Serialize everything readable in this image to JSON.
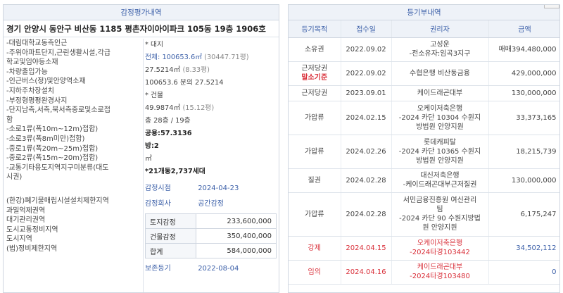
{
  "left_panel": {
    "title": "감정평가내역",
    "address": "경기 안양시 동안구 비산동 1185 평촌자이아이파크 105동 19층 1906호",
    "features": [
      "-대림대학교동측인근",
      "-주위아파트단지,근린생활시설,각급",
      "학교및임야등소재",
      "-차량출입가능",
      "-인근버스(정)및안양역소재",
      "-지하주차장설치",
      "-부정형평평완경사지",
      "-단지남측,서측,북서측중로및소로접",
      "함",
      "-소로1류(폭10m~12m)접합)",
      "-소로3류(폭8m미만)접합)",
      "-중로1류(폭20m~25m)접합)",
      "-중로2류(폭15m~20m)접합)",
      "-교통기타용도지역지구미분류(대도",
      "시권)"
    ],
    "zoning": [
      "(한강)폐기물매립시설설치제한지역",
      "과밀억제권역",
      "대기관리권역",
      "도시교통정비지역",
      "도시지역",
      "(법)정비제한지역"
    ],
    "land": {
      "header": "* 대지",
      "total_label": "전체: ",
      "total_value": "100653.6㎡",
      "total_pyeong": "(30447.71평)",
      "share_value": "27.5214㎡",
      "share_pyeong": "(8.33평)",
      "fraction": "100653.6 분의 27.5214"
    },
    "building": {
      "header": "* 건물",
      "area": "49.9874㎡",
      "area_pyeong": "(15.12평)",
      "floors": "총 28층 / 19층",
      "usage": "공용:57.3136",
      "rooms": "방:2",
      "unit": "㎡",
      "households": "*21개동2,737세대"
    },
    "appraisal_date_label": "감정시점",
    "appraisal_date": "2024-04-23",
    "appraiser_label": "감정회사",
    "appraiser": "공간감정",
    "valuation": [
      {
        "label": "토지감정",
        "value": "233,600,000"
      },
      {
        "label": "건물감정",
        "value": "350,400,000"
      },
      {
        "label": "합계",
        "value": "584,000,000"
      }
    ],
    "registry_label": "보존등기",
    "registry_date": "2022-08-04"
  },
  "right_panel": {
    "title": "등기부내역",
    "columns": [
      "등기목적",
      "접수일",
      "권리자",
      "금액"
    ],
    "rows": [
      {
        "purpose": "소유권",
        "purpose2": "",
        "date": "2022.09.02",
        "holder": [
          "고성운",
          "-전소유자:임곡3지구"
        ],
        "amount": "매매394,480,000",
        "style": "normal"
      },
      {
        "purpose": "근저당권",
        "purpose2": "말소기준",
        "date": "2022.09.02",
        "holder": [
          "수협은행 비산동금융"
        ],
        "amount": "429,000,000",
        "style": "marker"
      },
      {
        "purpose": "근저당권",
        "purpose2": "",
        "date": "2023.09.01",
        "holder": [
          "케이드래곤대부"
        ],
        "amount": "130,000,000",
        "style": "normal"
      },
      {
        "purpose": "가압류",
        "purpose2": "",
        "date": "2024.02.15",
        "holder": [
          "오케이저축은행",
          "-2024 카단 10304 수원지",
          "방법원 안양지원"
        ],
        "amount": "33,373,165",
        "style": "normal"
      },
      {
        "purpose": "가압류",
        "purpose2": "",
        "date": "2024.02.26",
        "holder": [
          "롯데캐피탈",
          "-2024 카단 10365 수원지",
          "방법원 안양지원"
        ],
        "amount": "18,215,739",
        "style": "normal"
      },
      {
        "purpose": "질권",
        "purpose2": "",
        "date": "2024.02.28",
        "holder": [
          "대신저축은행",
          "-케이드래곤대부근저질권"
        ],
        "amount": "130,000,000",
        "style": "normal"
      },
      {
        "purpose": "가압류",
        "purpose2": "",
        "date": "2024.02.28",
        "holder": [
          "서민금융진흥원 여신관리",
          "팀",
          "-2024 카단 90 수원지방법",
          "원 안양지원"
        ],
        "amount": "6,175,247",
        "style": "normal"
      },
      {
        "purpose": "강제",
        "purpose2": "",
        "date": "2024.04.15",
        "holder": [
          "오케이저축은행",
          "-2024타경103442"
        ],
        "amount": "34,502,112",
        "style": "red"
      },
      {
        "purpose": "임의",
        "purpose2": "",
        "date": "2024.04.16",
        "holder": [
          "케이드래곤대부",
          "-2024타경103480"
        ],
        "amount": "0",
        "style": "red"
      }
    ]
  }
}
